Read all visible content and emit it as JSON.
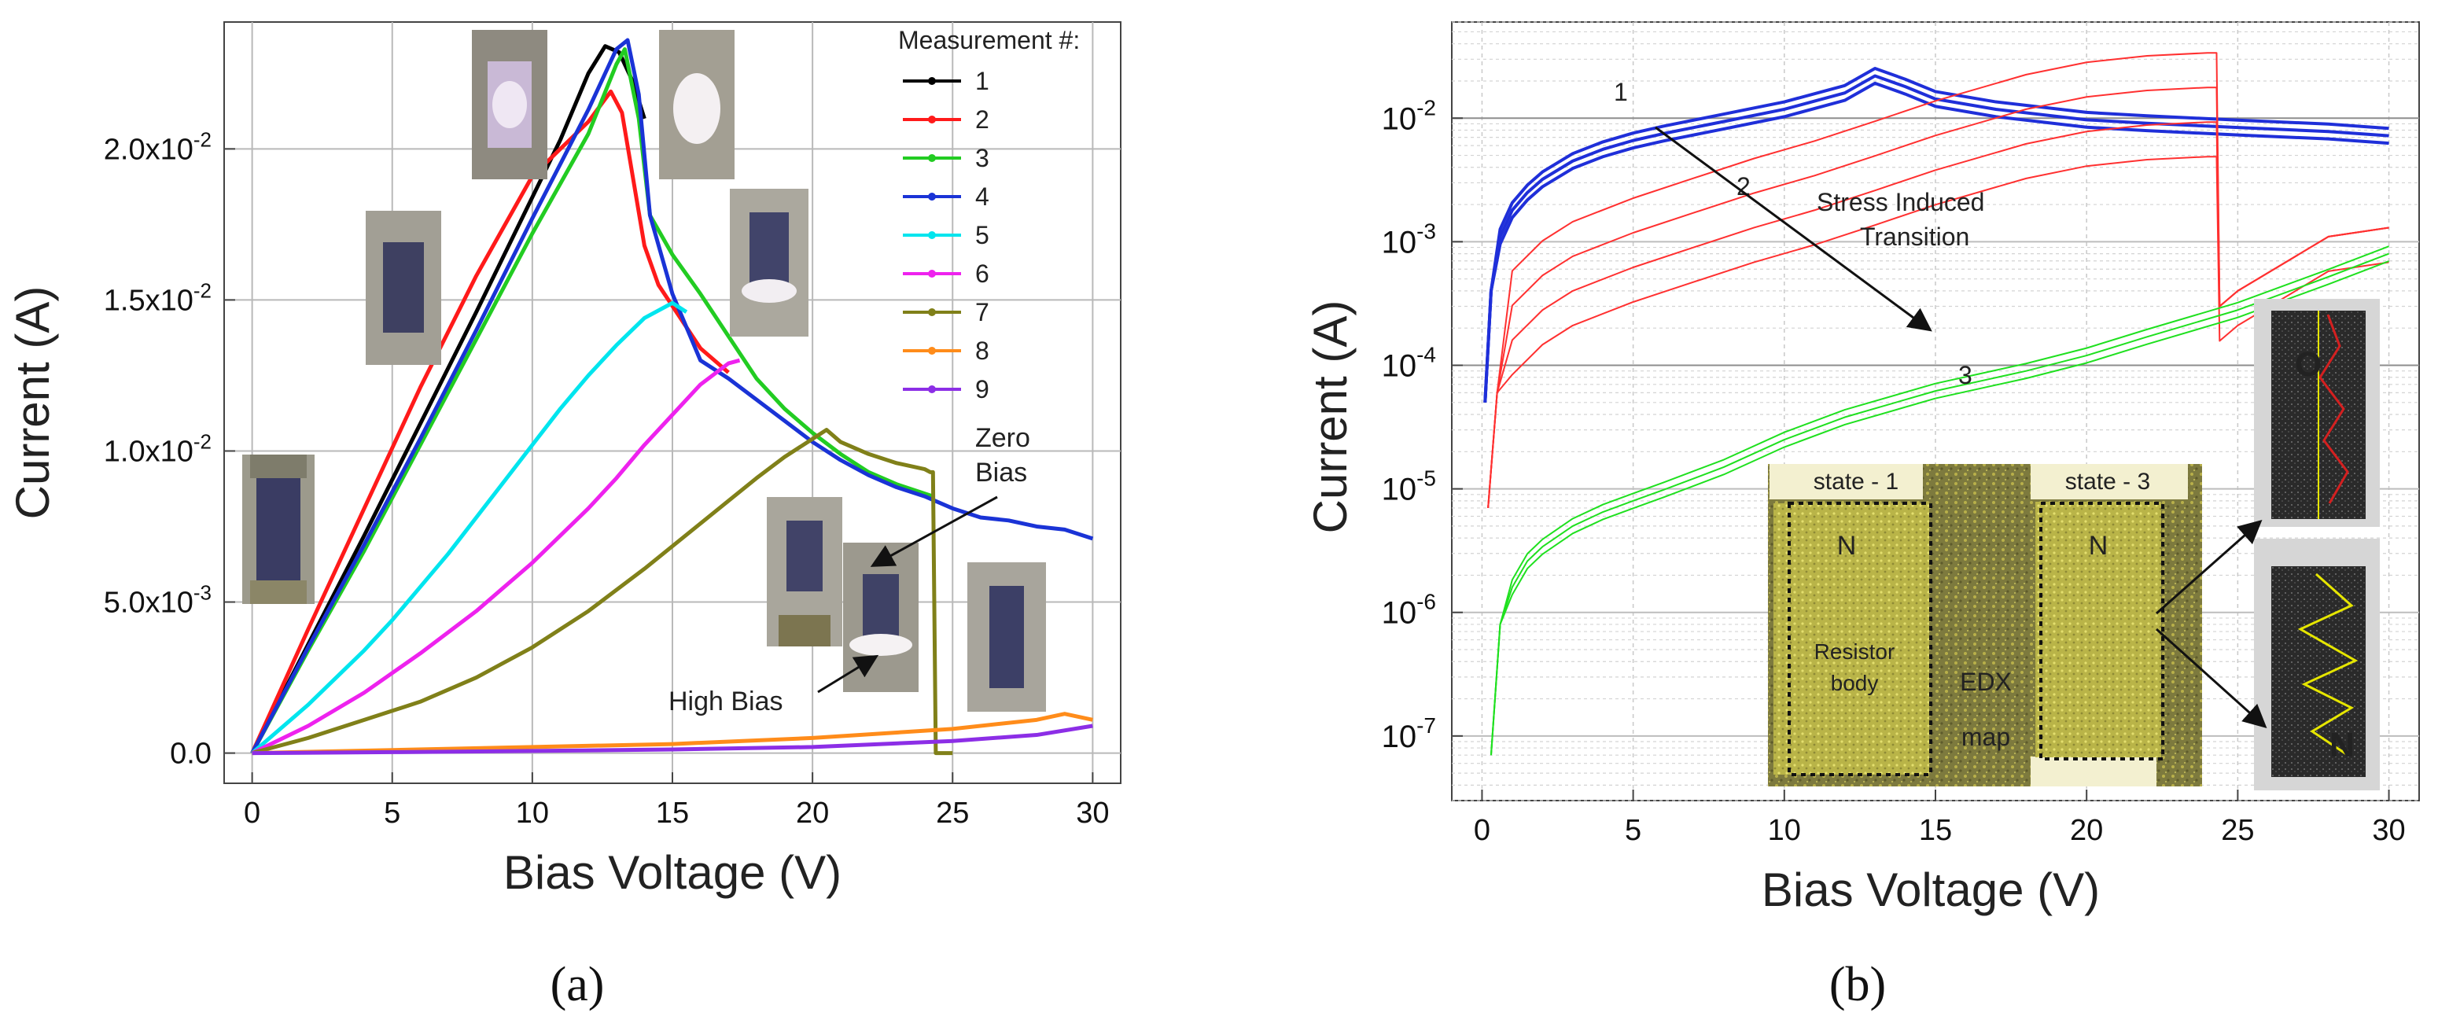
{
  "chart_data": [
    {
      "type": "line",
      "panel_label": "(a)",
      "xlabel": "Bias Voltage (V)",
      "ylabel": "Current (A)",
      "xlim": [
        -1,
        31
      ],
      "ylim": [
        -0.001,
        0.0242
      ],
      "xticks": [
        0,
        5,
        10,
        15,
        20,
        25,
        30
      ],
      "yticks": [
        0.0,
        0.005,
        0.01,
        0.015,
        0.02
      ],
      "ytick_labels": [
        "0.0",
        "5.0x10-3",
        "1.0x10-2",
        "1.5x10-2",
        "2.0x10-2"
      ],
      "grid": true,
      "legend_title": "Measurement #:",
      "legend_position": "top-right",
      "series": [
        {
          "name": "1",
          "color": "#000000",
          "x": [
            0,
            2,
            4,
            6,
            8,
            10,
            11,
            12,
            12.6,
            13.1,
            13.6,
            14
          ],
          "y": [
            0,
            0.0036,
            0.0072,
            0.0109,
            0.0146,
            0.0184,
            0.0203,
            0.0225,
            0.0234,
            0.0232,
            0.0222,
            0.021
          ]
        },
        {
          "name": "2",
          "color": "#ff1a1a",
          "x": [
            0,
            2,
            4,
            6,
            8,
            10,
            12,
            12.8,
            13.2,
            13.6,
            14,
            14.5,
            15,
            16,
            17
          ],
          "y": [
            0,
            0.0041,
            0.0081,
            0.0121,
            0.0158,
            0.0191,
            0.0209,
            0.0219,
            0.0212,
            0.019,
            0.0168,
            0.0155,
            0.0148,
            0.0134,
            0.0126
          ]
        },
        {
          "name": "3",
          "color": "#22cc22",
          "x": [
            0,
            2,
            4,
            6,
            8,
            10,
            12,
            13,
            13.3,
            13.8,
            14.2,
            15,
            16,
            17,
            18,
            19,
            20,
            21,
            22,
            23,
            24.3
          ],
          "y": [
            0,
            0.0034,
            0.0067,
            0.0102,
            0.0137,
            0.0172,
            0.0205,
            0.0228,
            0.0233,
            0.021,
            0.0178,
            0.0165,
            0.0152,
            0.0138,
            0.0124,
            0.0114,
            0.0106,
            0.0099,
            0.0093,
            0.0089,
            0.0085
          ]
        },
        {
          "name": "4",
          "color": "#1a33d6",
          "x": [
            0,
            2,
            4,
            6,
            8,
            10,
            12,
            13,
            13.4,
            13.8,
            14.2,
            15,
            16,
            17,
            18,
            19,
            20,
            21,
            22,
            23,
            24,
            25,
            26,
            27,
            28,
            29,
            30
          ],
          "y": [
            0,
            0.0035,
            0.0069,
            0.0104,
            0.014,
            0.0177,
            0.0213,
            0.0233,
            0.0236,
            0.0218,
            0.0178,
            0.0152,
            0.013,
            0.0124,
            0.0117,
            0.011,
            0.0103,
            0.0097,
            0.0092,
            0.0088,
            0.0085,
            0.0081,
            0.0078,
            0.0077,
            0.0075,
            0.0074,
            0.0071
          ]
        },
        {
          "name": "5",
          "color": "#00e5ee",
          "x": [
            0,
            1,
            2,
            3,
            4,
            5,
            6,
            7,
            8,
            9,
            10,
            11,
            12,
            13,
            14,
            15,
            15.5
          ],
          "y": [
            0,
            0.0008,
            0.0016,
            0.0025,
            0.0034,
            0.0044,
            0.0055,
            0.0066,
            0.0078,
            0.009,
            0.0102,
            0.0114,
            0.0125,
            0.0135,
            0.0144,
            0.0149,
            0.0146
          ]
        },
        {
          "name": "6",
          "color": "#ee22ee",
          "x": [
            0,
            2,
            4,
            6,
            8,
            10,
            12,
            13,
            14,
            15,
            16,
            17,
            17.4
          ],
          "y": [
            0,
            0.0009,
            0.002,
            0.0033,
            0.0047,
            0.0063,
            0.0081,
            0.0091,
            0.0102,
            0.0112,
            0.0122,
            0.0129,
            0.013
          ]
        },
        {
          "name": "7",
          "color": "#808019",
          "x": [
            0,
            2,
            4,
            6,
            8,
            10,
            12,
            14,
            16,
            18,
            19,
            20,
            20.5,
            21,
            22,
            23,
            24,
            24.2,
            24.3,
            24.4,
            25
          ],
          "y": [
            0,
            0.0005,
            0.0011,
            0.0017,
            0.0025,
            0.0035,
            0.0047,
            0.0061,
            0.0076,
            0.0091,
            0.0098,
            0.0104,
            0.0107,
            0.0103,
            0.0099,
            0.0096,
            0.0094,
            0.0093,
            0.0093,
            0.0,
            0.0
          ]
        },
        {
          "name": "8",
          "color": "#ff8c1a",
          "x": [
            0,
            5,
            10,
            15,
            20,
            25,
            28,
            29,
            30
          ],
          "y": [
            0,
            0.0001,
            0.0002,
            0.0003,
            0.0005,
            0.0008,
            0.0011,
            0.0013,
            0.0011
          ]
        },
        {
          "name": "9",
          "color": "#8c2ee6",
          "x": [
            0,
            5,
            10,
            15,
            20,
            25,
            28,
            30
          ],
          "y": [
            0,
            3e-05,
            7e-05,
            0.00012,
            0.0002,
            0.0004,
            0.0006,
            0.0009
          ]
        }
      ],
      "annotations": [
        "Zero\nBias",
        "High Bias"
      ]
    },
    {
      "type": "line",
      "panel_label": "(b)",
      "xlabel": "Bias Voltage (V)",
      "ylabel": "Current (A)",
      "yscale": "log",
      "xlim": [
        -1,
        31
      ],
      "ylim": [
        3e-08,
        0.06
      ],
      "xticks": [
        0,
        5,
        10,
        15,
        20,
        25,
        30
      ],
      "yticks": [
        1e-07,
        1e-06,
        1e-05,
        0.0001,
        0.001,
        0.01
      ],
      "ytick_bases": [
        "10",
        "10",
        "10",
        "10",
        "10",
        "10"
      ],
      "ytick_exponents": [
        "-7",
        "-6",
        "-5",
        "-4",
        "-3",
        "-2"
      ],
      "grid": true,
      "series": [
        {
          "name": "1",
          "color": "#1f2fd9",
          "x": [
            0.1,
            0.3,
            0.6,
            1,
            1.5,
            2,
            3,
            4,
            5,
            6,
            8,
            10,
            12,
            13,
            14,
            15,
            17,
            20,
            22,
            25,
            28,
            30
          ],
          "y": [
            5e-05,
            0.0004,
            0.0011,
            0.0018,
            0.0025,
            0.0032,
            0.0045,
            0.0056,
            0.0066,
            0.0075,
            0.0094,
            0.0118,
            0.016,
            0.022,
            0.018,
            0.0143,
            0.0118,
            0.0097,
            0.0091,
            0.0084,
            0.0078,
            0.0072
          ]
        },
        {
          "name": "2",
          "color": "#ff3030",
          "x": [
            0.2,
            0.5,
            1,
            2,
            3,
            5,
            7,
            9,
            11,
            13,
            15,
            18,
            20,
            22,
            24,
            24.3,
            24.4,
            25,
            28,
            30
          ],
          "y": [
            7e-06,
            6e-05,
            0.00016,
            0.00028,
            0.0004,
            0.00062,
            0.0009,
            0.0013,
            0.0018,
            0.0026,
            0.0038,
            0.0062,
            0.0078,
            0.0088,
            0.0093,
            0.0093,
            0.0003,
            0.0004,
            0.0011,
            0.0013
          ]
        },
        {
          "name": "3",
          "color": "#1fe01f",
          "x": [
            0.3,
            0.6,
            1,
            1.5,
            2,
            3,
            4,
            5,
            6,
            8,
            10,
            12,
            15,
            18,
            20,
            22,
            25,
            28,
            30
          ],
          "y": [
            7e-08,
            8e-07,
            1.6e-06,
            2.6e-06,
            3.4e-06,
            5e-06,
            6.5e-06,
            8e-06,
            9.8e-06,
            1.5e-05,
            2.5e-05,
            3.8e-05,
            6.2e-05,
            9e-05,
            0.00012,
            0.00017,
            0.00028,
            0.00052,
            0.0008
          ]
        }
      ],
      "curve_labels": [
        "1",
        "2",
        "3"
      ],
      "annotations": [
        "Stress Induced",
        "Transition"
      ],
      "inset": {
        "labels": [
          "state - 1",
          "state - 3",
          "N",
          "N",
          "Resistor\nbody",
          "EDX\nmap"
        ],
        "side_labels": [
          "O",
          "N"
        ]
      }
    }
  ]
}
